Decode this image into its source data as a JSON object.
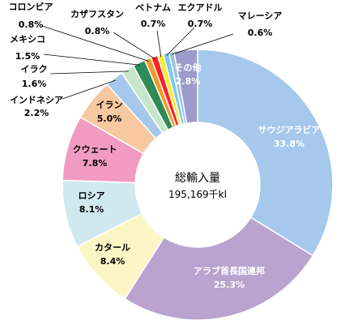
{
  "chart_data": {
    "type": "pie",
    "style": "donut",
    "center": {
      "title": "総輸入量",
      "value": "195,169千kl"
    },
    "slices": [
      {
        "label": "サウジアラビア",
        "value": 33.8,
        "display": "33.8%",
        "color": "#a6c8ec"
      },
      {
        "label": "アラブ首長国連邦",
        "value": 25.3,
        "display": "25.3%",
        "color": "#b9a3cf"
      },
      {
        "label": "カタール",
        "value": 8.4,
        "display": "8.4%",
        "color": "#fbf6c6"
      },
      {
        "label": "ロシア",
        "value": 8.1,
        "display": "8.1%",
        "color": "#cfe9ef"
      },
      {
        "label": "クウェート",
        "value": 7.8,
        "display": "7.8%",
        "color": "#f19bc2"
      },
      {
        "label": "イラン",
        "value": 5.0,
        "display": "5.0%",
        "color": "#f8c8a0"
      },
      {
        "label": "インドネシア",
        "value": 2.2,
        "display": "2.2%",
        "color": "#a6c8ec"
      },
      {
        "label": "イラク",
        "value": 1.6,
        "display": "1.6%",
        "color": "#c8e6cc"
      },
      {
        "label": "メキシコ",
        "value": 1.5,
        "display": "1.5%",
        "color": "#2e8b57"
      },
      {
        "label": "コロンビア",
        "value": 0.8,
        "display": "0.8%",
        "color": "#f39a2b"
      },
      {
        "label": "カザフスタン",
        "value": 0.8,
        "display": "0.8%",
        "color": "#ff2020"
      },
      {
        "label": "ベトナム",
        "value": 0.7,
        "display": "0.7%",
        "color": "#f5ef2e"
      },
      {
        "label": "エクアドル",
        "value": 0.7,
        "display": "0.7%",
        "color": "#79c8ee"
      },
      {
        "label": "マレーシア",
        "value": 0.6,
        "display": "0.6%",
        "color": "#a2bfdd"
      },
      {
        "label": "その他",
        "value": 2.8,
        "display": "2.8%",
        "color": "#9c9ccb"
      }
    ]
  }
}
